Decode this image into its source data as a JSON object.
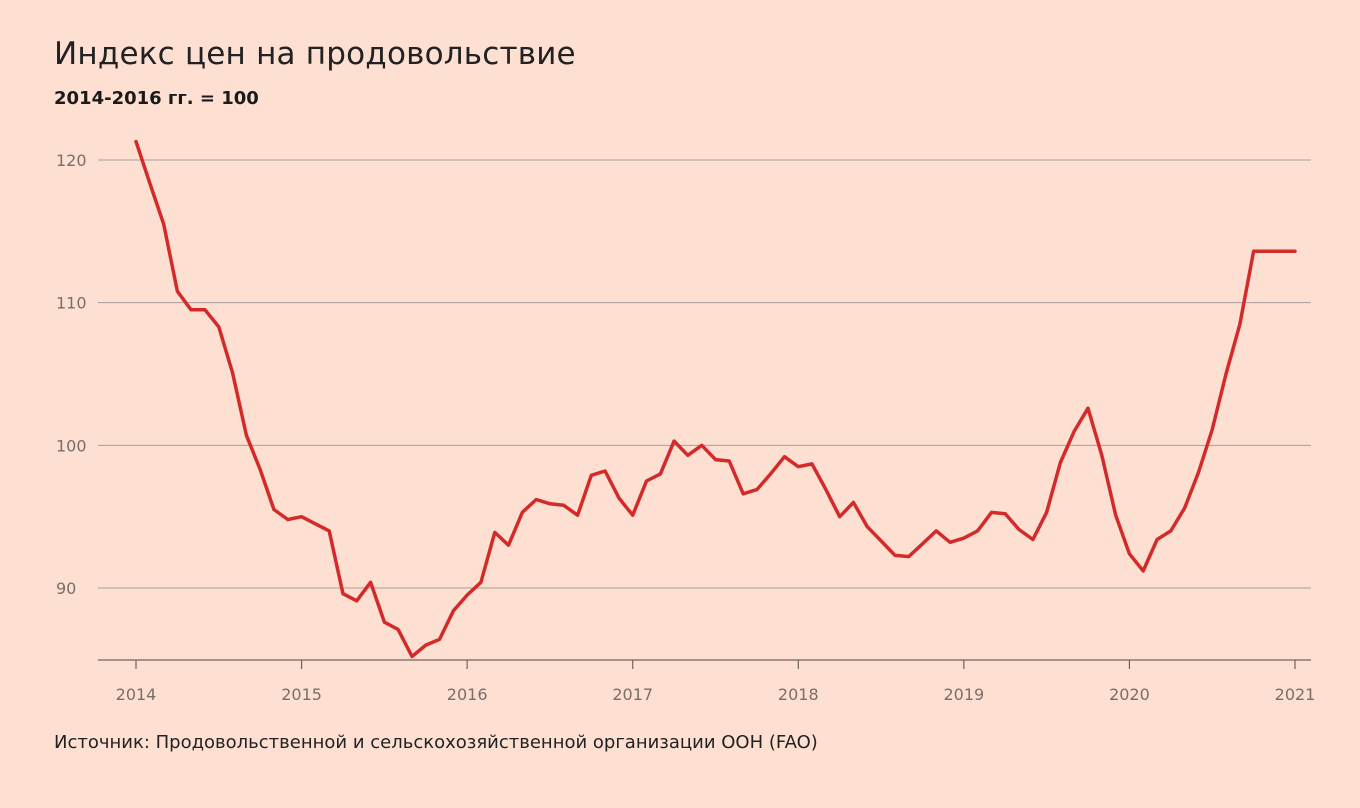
{
  "chart_data": {
    "type": "line",
    "title": "Индекс цен на продовольствие",
    "subtitle": "2014-2016 гг. = 100",
    "source": "Источник: Продовольственной и сельскохозяйственной организации ООН (FAO)",
    "xlabel": "",
    "ylabel": "",
    "x_range": [
      2014,
      2021
    ],
    "ylim": [
      85,
      122
    ],
    "y_ticks": [
      90,
      100,
      110,
      120
    ],
    "x_ticks": [
      2014,
      2015,
      2016,
      2017,
      2018,
      2019,
      2020,
      2021
    ],
    "grid": "horizontal",
    "line_color": "#d42a2a",
    "series": [
      {
        "x": [
          2014.0,
          2014.083,
          2014.167,
          2014.25,
          2014.333,
          2014.417,
          2014.5,
          2014.583,
          2014.667,
          2014.75,
          2014.833,
          2014.917,
          2015.0,
          2015.083,
          2015.167,
          2015.25,
          2015.333,
          2015.417,
          2015.5,
          2015.583,
          2015.667,
          2015.75,
          2015.833,
          2015.917,
          2016.0,
          2016.083,
          2016.167,
          2016.25,
          2016.333,
          2016.417,
          2016.5,
          2016.583,
          2016.667,
          2016.75,
          2016.833,
          2016.917,
          2017.0,
          2017.083,
          2017.167,
          2017.25,
          2017.333,
          2017.417,
          2017.5,
          2017.583,
          2017.667,
          2017.75,
          2017.833,
          2017.917,
          2018.0,
          2018.083,
          2018.167,
          2018.25,
          2018.333,
          2018.417,
          2018.5,
          2018.583,
          2018.667,
          2018.75,
          2018.833,
          2018.917,
          2019.0,
          2019.083,
          2019.167,
          2019.25,
          2019.333,
          2019.417,
          2019.5,
          2019.583,
          2019.667,
          2019.75,
          2019.833,
          2019.917,
          2020.0,
          2020.083,
          2020.167,
          2020.25,
          2020.333,
          2020.417,
          2020.5,
          2020.583,
          2020.667,
          2020.75,
          2020.833,
          2020.917,
          2021.0
        ],
        "values": [
          121.3,
          118.4,
          115.5,
          110.8,
          109.5,
          109.5,
          108.3,
          105.1,
          100.7,
          98.3,
          95.5,
          94.8,
          95.0,
          94.5,
          94.0,
          89.6,
          89.1,
          90.4,
          87.6,
          87.1,
          85.2,
          86.0,
          86.4,
          88.4,
          89.5,
          90.4,
          93.9,
          93.0,
          95.3,
          96.2,
          95.9,
          95.8,
          95.1,
          97.9,
          98.2,
          96.3,
          95.1,
          97.5,
          98.0,
          100.3,
          99.3,
          100.0,
          99.0,
          98.9,
          96.6,
          96.9,
          98.0,
          99.2,
          98.5,
          98.7,
          96.9,
          95.0,
          96.0,
          94.3,
          93.3,
          92.3,
          92.2,
          93.1,
          94.0,
          93.2,
          93.5,
          94.0,
          95.3,
          95.2,
          94.1,
          93.4,
          95.3,
          98.8,
          101.0,
          102.6,
          99.3,
          95.1,
          92.4,
          91.2,
          93.4,
          94.0,
          95.6,
          98.1,
          101.1,
          105.0,
          108.5,
          113.6,
          113.6,
          113.6,
          113.6
        ]
      }
    ]
  }
}
